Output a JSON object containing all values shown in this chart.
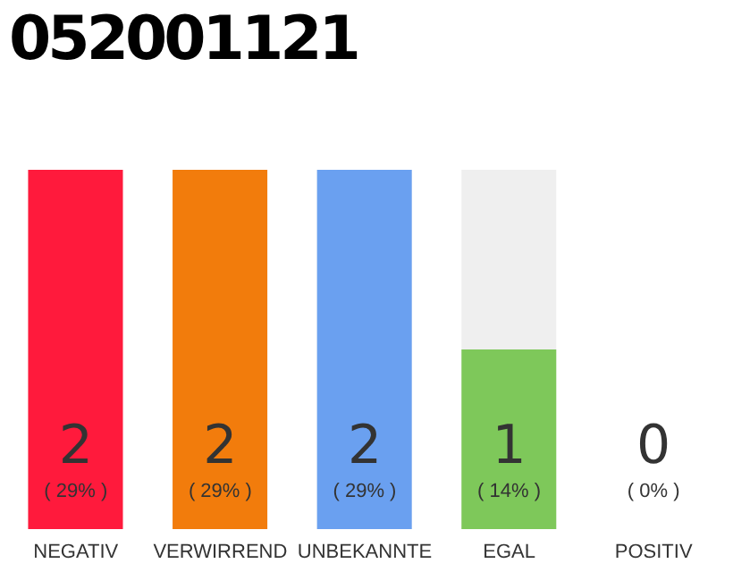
{
  "chart_data": {
    "type": "bar",
    "title": "052001121",
    "categories": [
      "NEGATIV",
      "VERWIRREND",
      "UNBEKANNTE",
      "EGAL",
      "POSITIV"
    ],
    "values": [
      2,
      2,
      2,
      1,
      0
    ],
    "colors": [
      "#ff1a3c",
      "#f27c0c",
      "#6aa0f0",
      "#7ec85a",
      "#bdbdbd"
    ],
    "ylim": [
      0,
      2
    ],
    "value_labels": [
      "2\n( 29% )",
      "2\n( 29% )",
      "2\n( 29% )",
      "1\n( 14% )",
      "0\n( 0% )"
    ],
    "tick_labels": "x",
    "grid": false,
    "legend": false
  }
}
